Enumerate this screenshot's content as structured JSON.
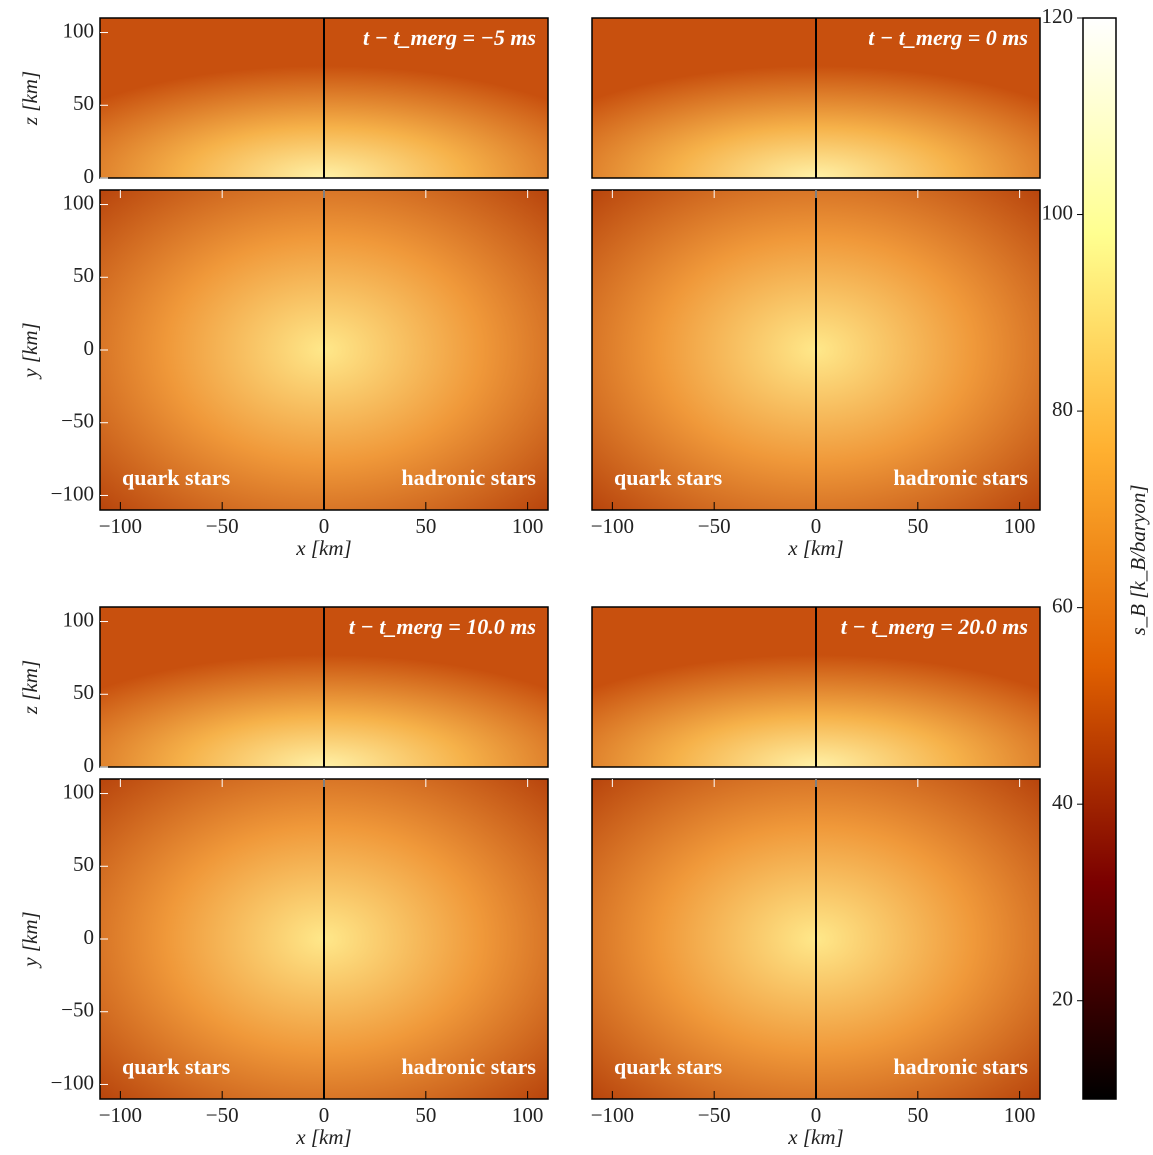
{
  "chart_data": [
    {
      "type": "heatmap",
      "ylabel": "z [km]",
      "xlim": [
        -110,
        110
      ],
      "ylim": [
        0,
        110
      ],
      "yticks": [
        0,
        50,
        100
      ],
      "annotations": [
        "t − t_merg = −5 ms"
      ]
    },
    {
      "type": "heatmap",
      "xlabel": "x [km]",
      "ylabel": "y [km]",
      "xlim": [
        -110,
        110
      ],
      "ylim": [
        -110,
        110
      ],
      "xticks": [
        {
          "value": -100,
          "label": "−100"
        },
        {
          "value": -50,
          "label": "−50"
        },
        0,
        50,
        100
      ],
      "yticks": [
        {
          "value": -100,
          "label": "−100"
        },
        {
          "value": -50,
          "label": "−50"
        },
        0,
        50,
        100
      ],
      "annotations": [
        "quark stars",
        "hadronic stars"
      ]
    },
    {
      "type": "heatmap",
      "xlim": [
        -110,
        110
      ],
      "ylim": [
        0,
        110
      ],
      "annotations": [
        "t − t_merg = 0 ms"
      ]
    },
    {
      "type": "heatmap",
      "xlabel": "x [km]",
      "xlim": [
        -110,
        110
      ],
      "ylim": [
        -110,
        110
      ],
      "xticks": [
        {
          "value": -100,
          "label": "−100"
        },
        {
          "value": -50,
          "label": "−50"
        },
        0,
        50,
        100
      ],
      "annotations": [
        "quark stars",
        "hadronic stars"
      ]
    },
    {
      "type": "heatmap",
      "ylabel": "z [km]",
      "xlim": [
        -110,
        110
      ],
      "ylim": [
        0,
        110
      ],
      "yticks": [
        0,
        50,
        100
      ],
      "annotations": [
        "t − t_merg = 10.0 ms"
      ]
    },
    {
      "type": "heatmap",
      "xlabel": "x [km]",
      "ylabel": "y [km]",
      "xlim": [
        -110,
        110
      ],
      "ylim": [
        -110,
        110
      ],
      "xticks": [
        {
          "value": -100,
          "label": "−100"
        },
        {
          "value": -50,
          "label": "−50"
        },
        0,
        50,
        100
      ],
      "yticks": [
        {
          "value": -100,
          "label": "−100"
        },
        {
          "value": -50,
          "label": "−50"
        },
        0,
        50,
        100
      ],
      "annotations": [
        "quark stars",
        "hadronic stars"
      ]
    },
    {
      "type": "heatmap",
      "xlim": [
        -110,
        110
      ],
      "ylim": [
        0,
        110
      ],
      "annotations": [
        "t − t_merg = 20.0 ms"
      ]
    },
    {
      "type": "heatmap",
      "xlabel": "x [km]",
      "xlim": [
        -110,
        110
      ],
      "ylim": [
        -110,
        110
      ],
      "xticks": [
        {
          "value": -100,
          "label": "−100"
        },
        {
          "value": -50,
          "label": "−50"
        },
        0,
        50,
        100
      ],
      "annotations": [
        "quark stars",
        "hadronic stars"
      ]
    },
    {
      "type": "colorbar",
      "ylabel": "s_B [k_B/baryon]",
      "ylim": [
        10,
        120
      ],
      "yticks": [
        20,
        40,
        60,
        80,
        100,
        120
      ],
      "colors": [
        "#000000",
        "#7a0000",
        "#e06000",
        "#ffb030",
        "#ffff90",
        "#ffffff"
      ]
    }
  ]
}
